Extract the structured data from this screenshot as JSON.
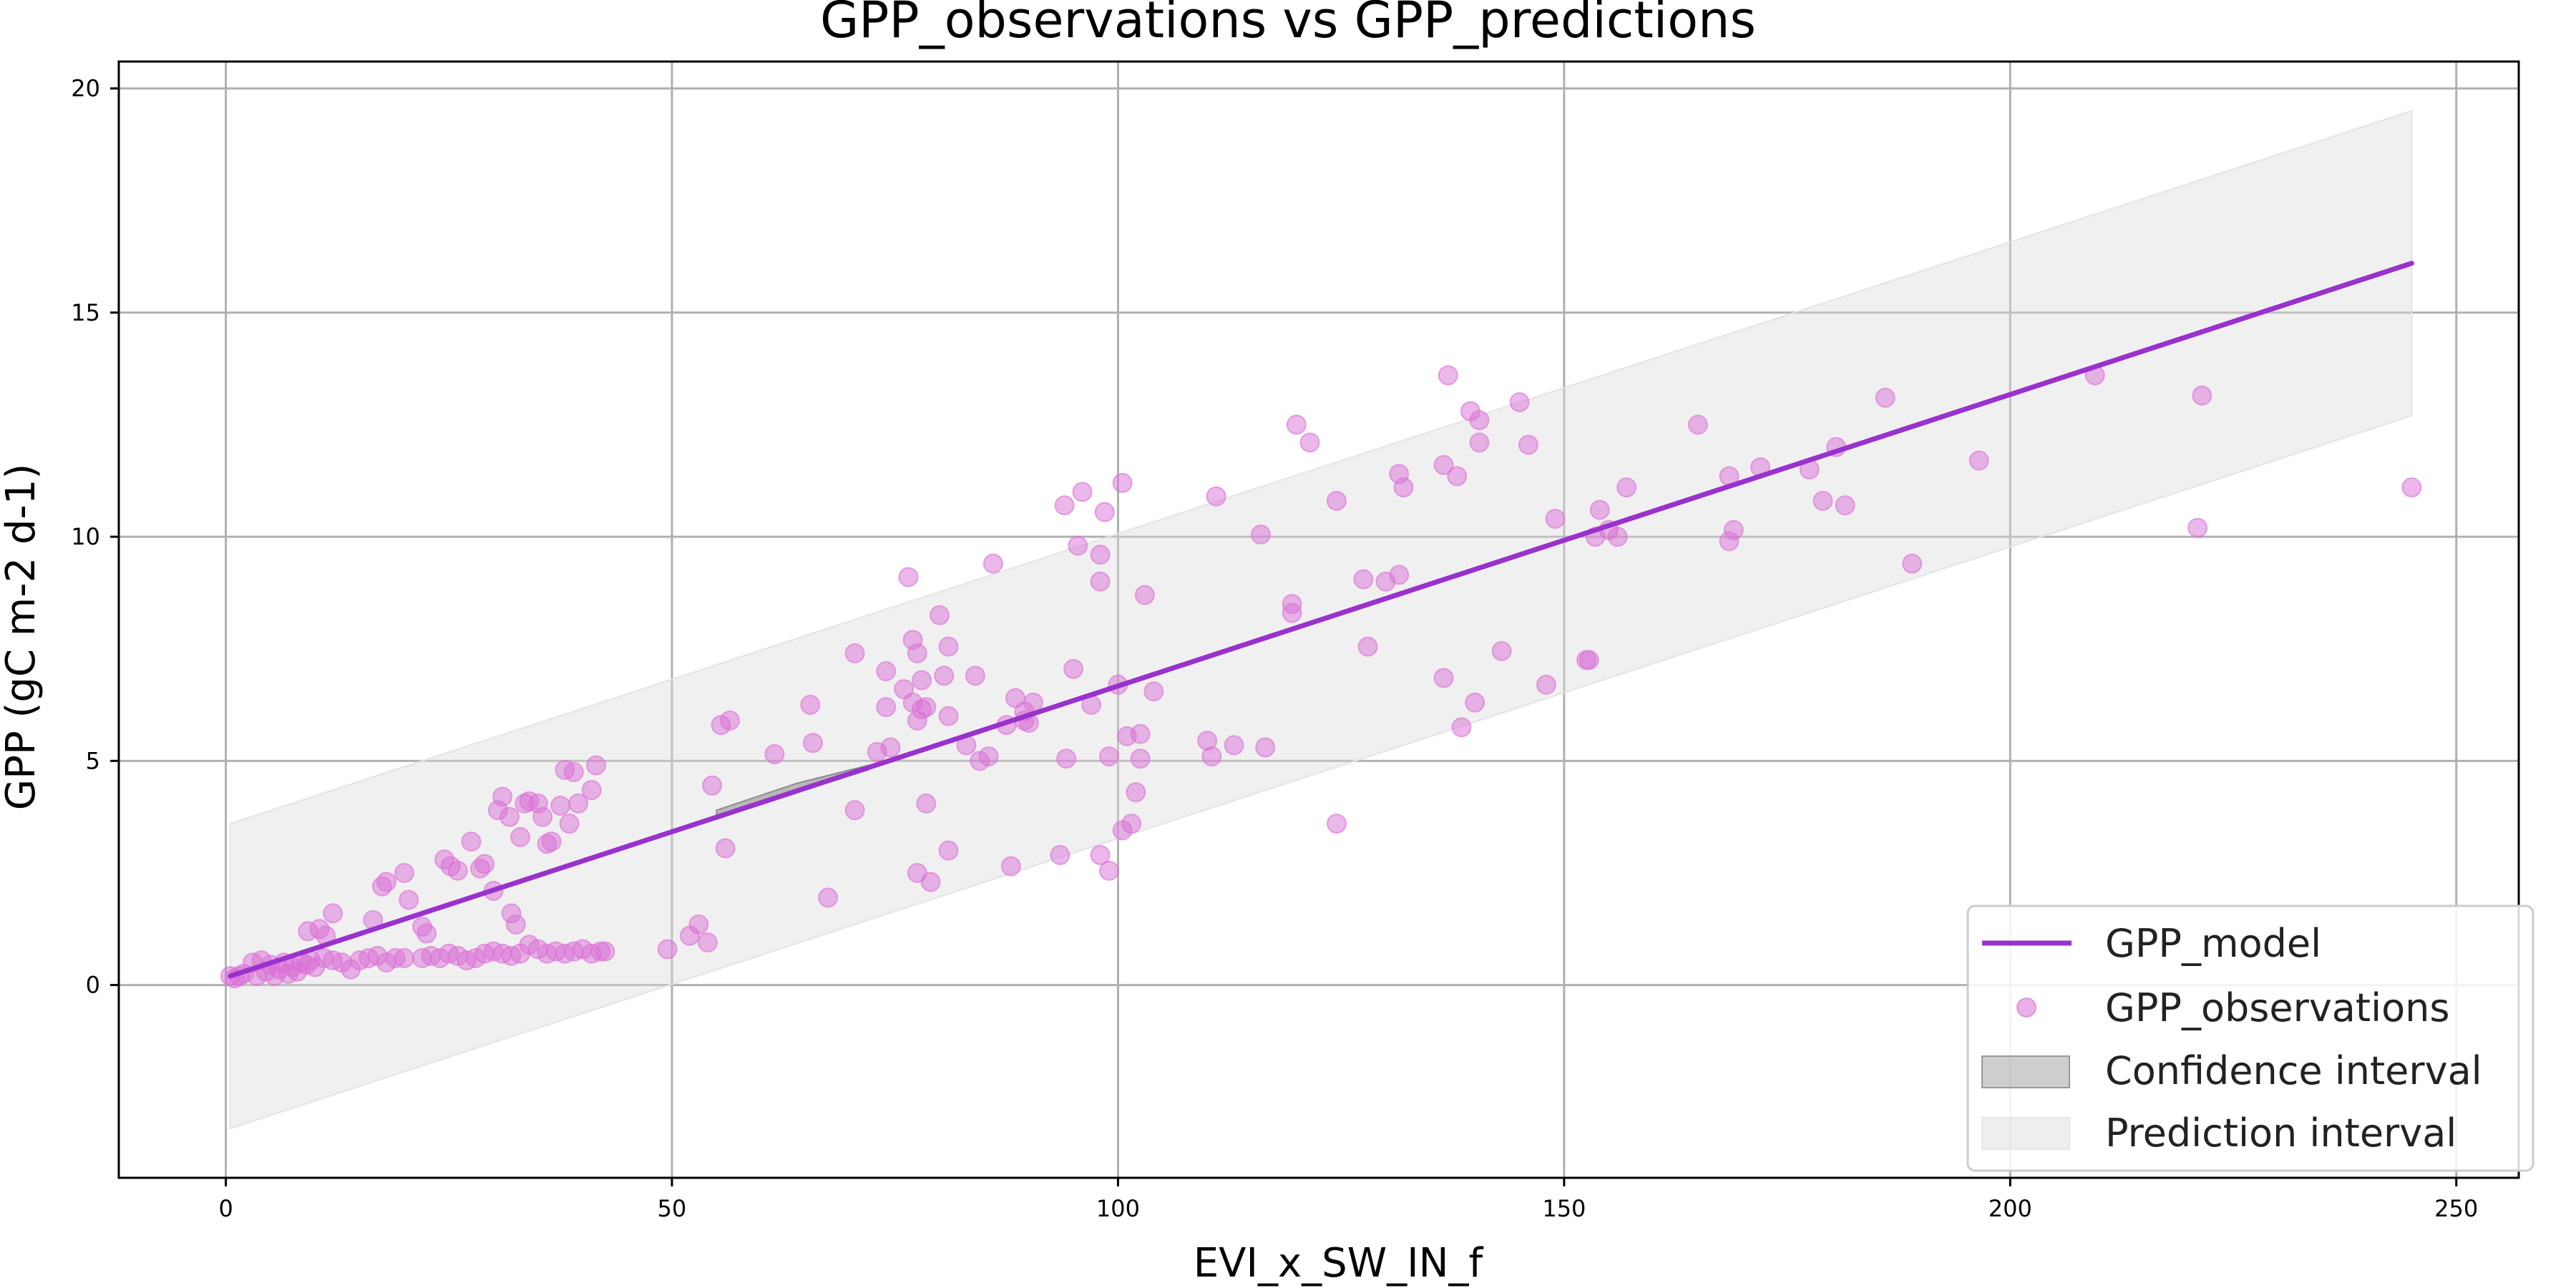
{
  "chart_data": {
    "type": "scatter",
    "title": "GPP_observations vs GPP_predictions",
    "xlabel": "EVI_x_SW_IN_f",
    "ylabel": "GPP (gC m-2 d-1)",
    "xlim": [
      -12,
      257
    ],
    "ylim": [
      -4.3,
      20.6
    ],
    "xticks": [
      0,
      50,
      100,
      150,
      200,
      250
    ],
    "yticks": [
      0,
      5,
      10,
      15,
      20
    ],
    "grid": true,
    "legend_position": "bottom-right",
    "legend": [
      {
        "label": "GPP_model",
        "kind": "line"
      },
      {
        "label": "GPP_observations",
        "kind": "marker"
      },
      {
        "label": "Confidence interval",
        "kind": "patch-dark"
      },
      {
        "label": "Prediction interval",
        "kind": "patch-light"
      }
    ],
    "model_line": {
      "x": [
        0.5,
        245
      ],
      "y": [
        0.2,
        16.1
      ]
    },
    "prediction_interval": {
      "x": [
        0.5,
        245
      ],
      "lower": [
        -3.2,
        12.7
      ],
      "upper": [
        3.6,
        19.5
      ]
    },
    "confidence_interval": {
      "x": [
        55,
        64,
        72
      ],
      "lower": [
        3.7,
        4.3,
        4.8
      ],
      "upper": [
        3.9,
        4.5,
        4.9
      ]
    },
    "colors": {
      "model": "#9932cc",
      "points": "#da70d6",
      "prediction_band": "#d9d9d9",
      "confidence_band": "#a6a6a6",
      "grid": "#b0b0b0"
    },
    "series": [
      {
        "name": "GPP_observations",
        "points": [
          [
            0.5,
            0.2
          ],
          [
            1,
            0.15
          ],
          [
            1.5,
            0.2
          ],
          [
            2,
            0.25
          ],
          [
            3,
            0.5
          ],
          [
            3.5,
            0.2
          ],
          [
            4,
            0.55
          ],
          [
            4.5,
            0.3
          ],
          [
            5,
            0.45
          ],
          [
            5.5,
            0.2
          ],
          [
            6,
            0.35
          ],
          [
            6.5,
            0.5
          ],
          [
            7,
            0.25
          ],
          [
            7.5,
            0.4
          ],
          [
            8,
            0.3
          ],
          [
            8.5,
            0.5
          ],
          [
            9,
            0.45
          ],
          [
            9.5,
            0.55
          ],
          [
            10,
            0.4
          ],
          [
            11,
            0.6
          ],
          [
            12,
            0.55
          ],
          [
            13,
            0.5
          ],
          [
            14,
            0.35
          ],
          [
            15,
            0.55
          ],
          [
            16,
            0.6
          ],
          [
            17,
            0.65
          ],
          [
            18,
            0.5
          ],
          [
            19,
            0.6
          ],
          [
            20,
            0.6
          ],
          [
            9.2,
            1.2
          ],
          [
            10.5,
            1.25
          ],
          [
            11.2,
            1.1
          ],
          [
            12,
            1.6
          ],
          [
            16.5,
            1.45
          ],
          [
            17.5,
            2.2
          ],
          [
            18,
            2.3
          ],
          [
            20,
            2.5
          ],
          [
            20.5,
            1.9
          ],
          [
            22,
            1.3
          ],
          [
            22.5,
            1.15
          ],
          [
            24.5,
            2.8
          ],
          [
            25.2,
            2.65
          ],
          [
            26,
            2.55
          ],
          [
            27.5,
            3.2
          ],
          [
            28.5,
            2.6
          ],
          [
            29,
            2.7
          ],
          [
            30,
            2.1
          ],
          [
            30.5,
            3.9
          ],
          [
            31,
            4.2
          ],
          [
            31.8,
            3.75
          ],
          [
            32,
            1.6
          ],
          [
            32.5,
            1.35
          ],
          [
            33,
            3.3
          ],
          [
            33.5,
            4.05
          ],
          [
            34,
            4.1
          ],
          [
            35,
            4.05
          ],
          [
            35.5,
            3.75
          ],
          [
            36,
            3.15
          ],
          [
            36.5,
            3.2
          ],
          [
            37.5,
            4.0
          ],
          [
            38,
            4.8
          ],
          [
            38.5,
            3.6
          ],
          [
            39,
            4.75
          ],
          [
            39.5,
            4.05
          ],
          [
            41,
            4.35
          ],
          [
            41.5,
            4.9
          ],
          [
            22,
            0.6
          ],
          [
            23,
            0.65
          ],
          [
            24,
            0.6
          ],
          [
            25,
            0.7
          ],
          [
            26,
            0.65
          ],
          [
            27,
            0.55
          ],
          [
            28,
            0.6
          ],
          [
            29,
            0.7
          ],
          [
            30,
            0.75
          ],
          [
            31,
            0.7
          ],
          [
            32,
            0.65
          ],
          [
            33,
            0.7
          ],
          [
            34,
            0.9
          ],
          [
            35,
            0.8
          ],
          [
            36,
            0.7
          ],
          [
            37,
            0.75
          ],
          [
            38,
            0.7
          ],
          [
            39,
            0.75
          ],
          [
            40,
            0.8
          ],
          [
            41,
            0.7
          ],
          [
            42,
            0.75
          ],
          [
            42.5,
            0.75
          ],
          [
            49.5,
            0.8
          ],
          [
            52,
            1.1
          ],
          [
            53,
            1.35
          ],
          [
            54,
            0.95
          ],
          [
            54.5,
            4.45
          ],
          [
            55.5,
            5.8
          ],
          [
            56.5,
            5.9
          ],
          [
            56,
            3.05
          ],
          [
            61.5,
            5.15
          ],
          [
            65.5,
            6.25
          ],
          [
            65.8,
            5.4
          ],
          [
            67.5,
            1.95
          ],
          [
            70.5,
            7.4
          ],
          [
            70.5,
            3.9
          ],
          [
            73,
            5.2
          ],
          [
            74,
            7.0
          ],
          [
            74.5,
            5.3
          ],
          [
            74,
            6.2
          ],
          [
            76,
            6.6
          ],
          [
            76.5,
            9.1
          ],
          [
            77,
            7.7
          ],
          [
            77,
            6.3
          ],
          [
            77.5,
            7.4
          ],
          [
            77.5,
            5.9
          ],
          [
            78,
            6.8
          ],
          [
            78,
            6.15
          ],
          [
            78.5,
            6.2
          ],
          [
            78.5,
            4.05
          ],
          [
            77.5,
            2.5
          ],
          [
            79,
            2.3
          ],
          [
            80,
            8.25
          ],
          [
            80.5,
            6.9
          ],
          [
            81,
            7.55
          ],
          [
            81,
            6.0
          ],
          [
            81,
            3.0
          ],
          [
            83,
            5.35
          ],
          [
            84,
            6.9
          ],
          [
            84.5,
            5.0
          ],
          [
            85.5,
            5.1
          ],
          [
            86,
            9.4
          ],
          [
            87.5,
            5.8
          ],
          [
            88,
            2.65
          ],
          [
            88.5,
            6.4
          ],
          [
            89.5,
            6.1
          ],
          [
            89.5,
            5.9
          ],
          [
            90,
            5.85
          ],
          [
            90.5,
            6.3
          ],
          [
            93.5,
            2.9
          ],
          [
            94,
            10.7
          ],
          [
            94.2,
            5.05
          ],
          [
            95,
            7.05
          ],
          [
            95.5,
            9.8
          ],
          [
            96,
            11.0
          ],
          [
            97,
            6.25
          ],
          [
            98,
            9.6
          ],
          [
            98,
            9.0
          ],
          [
            98,
            2.9
          ],
          [
            98.5,
            10.55
          ],
          [
            99,
            5.1
          ],
          [
            99,
            2.55
          ],
          [
            100,
            6.7
          ],
          [
            100.5,
            11.2
          ],
          [
            100.5,
            3.45
          ],
          [
            101,
            5.55
          ],
          [
            101.5,
            3.6
          ],
          [
            102,
            4.3
          ],
          [
            102.5,
            5.05
          ],
          [
            102.5,
            5.6
          ],
          [
            103,
            8.7
          ],
          [
            104,
            6.55
          ],
          [
            110,
            5.45
          ],
          [
            110.5,
            5.1
          ],
          [
            111,
            10.9
          ],
          [
            113,
            5.35
          ],
          [
            116,
            10.05
          ],
          [
            116.5,
            5.3
          ],
          [
            119.5,
            8.5
          ],
          [
            119.5,
            8.3
          ],
          [
            120,
            12.5
          ],
          [
            121.5,
            12.1
          ],
          [
            124.5,
            10.8
          ],
          [
            124.5,
            3.6
          ],
          [
            127.5,
            9.05
          ],
          [
            128,
            7.55
          ],
          [
            130,
            9.0
          ],
          [
            131.5,
            11.4
          ],
          [
            131.5,
            9.15
          ],
          [
            132,
            11.1
          ],
          [
            136.5,
            6.85
          ],
          [
            136.5,
            11.6
          ],
          [
            137,
            13.6
          ],
          [
            138,
            11.35
          ],
          [
            138.5,
            5.75
          ],
          [
            139.5,
            12.8
          ],
          [
            140,
            6.3
          ],
          [
            140.5,
            12.6
          ],
          [
            140.5,
            12.1
          ],
          [
            143,
            7.45
          ],
          [
            145,
            13.0
          ],
          [
            146,
            12.05
          ],
          [
            148,
            6.7
          ],
          [
            149,
            10.4
          ],
          [
            152.5,
            7.25
          ],
          [
            152.8,
            7.25
          ],
          [
            153.5,
            10.0
          ],
          [
            154,
            10.6
          ],
          [
            155,
            10.15
          ],
          [
            156,
            10.0
          ],
          [
            157,
            11.1
          ],
          [
            165,
            12.5
          ],
          [
            168.5,
            9.9
          ],
          [
            168.5,
            11.35
          ],
          [
            169,
            10.15
          ],
          [
            172,
            11.55
          ],
          [
            177.5,
            11.5
          ],
          [
            179,
            10.8
          ],
          [
            180.5,
            12.0
          ],
          [
            181.5,
            10.7
          ],
          [
            186,
            13.1
          ],
          [
            189,
            9.4
          ],
          [
            196.5,
            11.7
          ],
          [
            209.5,
            13.6
          ],
          [
            221,
            10.2
          ],
          [
            221.5,
            13.15
          ],
          [
            245,
            11.1
          ]
        ]
      }
    ]
  }
}
